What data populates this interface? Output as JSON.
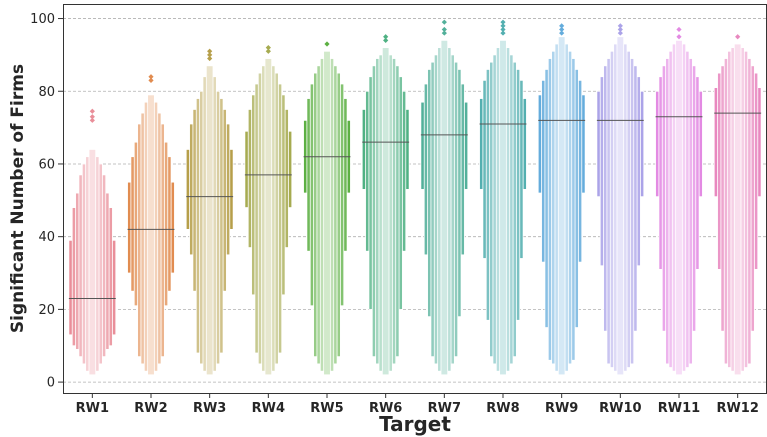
{
  "chart_data": {
    "type": "boxen",
    "xlabel": "Target",
    "ylabel": "Significant Number of Firms",
    "ylim": [
      -3,
      104
    ],
    "yticks": [
      0,
      20,
      40,
      60,
      80,
      100
    ],
    "ytick_labels": [
      "0",
      "20",
      "40",
      "60",
      "80",
      "100"
    ],
    "grid": "horizontal-dashed",
    "categories": [
      "RW1",
      "RW2",
      "RW3",
      "RW4",
      "RW5",
      "RW6",
      "RW7",
      "RW8",
      "RW9",
      "RW10",
      "RW11",
      "RW12"
    ],
    "series": [
      {
        "category": "RW1",
        "color": "#e98e99",
        "median": 23,
        "levels": [
          [
            13,
            39
          ],
          [
            10,
            48
          ],
          [
            9,
            52
          ],
          [
            7,
            57
          ],
          [
            5,
            60
          ],
          [
            3,
            62
          ],
          [
            2,
            64
          ]
        ],
        "outliers": [
          72,
          73,
          74.5
        ]
      },
      {
        "category": "RW2",
        "color": "#e18c50",
        "median": 42,
        "levels": [
          [
            30,
            55
          ],
          [
            25,
            62
          ],
          [
            21,
            66
          ],
          [
            7,
            71
          ],
          [
            5,
            74
          ],
          [
            3,
            77
          ],
          [
            2,
            79
          ]
        ],
        "outliers": [
          83,
          84
        ]
      },
      {
        "category": "RW3",
        "color": "#b69f4a",
        "median": 51,
        "levels": [
          [
            42,
            64
          ],
          [
            35,
            71
          ],
          [
            25,
            75
          ],
          [
            8,
            78
          ],
          [
            5,
            80
          ],
          [
            3,
            84
          ],
          [
            2,
            87
          ]
        ],
        "outliers": [
          89,
          90,
          91
        ]
      },
      {
        "category": "RW4",
        "color": "#a6ab50",
        "median": 57,
        "levels": [
          [
            48,
            69
          ],
          [
            37,
            75
          ],
          [
            24,
            79
          ],
          [
            8,
            82
          ],
          [
            5,
            85
          ],
          [
            3,
            87
          ],
          [
            2,
            89
          ]
        ],
        "outliers": [
          91,
          92
        ]
      },
      {
        "category": "RW5",
        "color": "#5cb043",
        "median": 62,
        "levels": [
          [
            52,
            72
          ],
          [
            36,
            78
          ],
          [
            21,
            82
          ],
          [
            7,
            85
          ],
          [
            5,
            87
          ],
          [
            3,
            89
          ],
          [
            2,
            91
          ]
        ],
        "outliers": [
          93
        ]
      },
      {
        "category": "RW6",
        "color": "#4fb183",
        "median": 66,
        "levels": [
          [
            53,
            75
          ],
          [
            36,
            80
          ],
          [
            20,
            84
          ],
          [
            7,
            87
          ],
          [
            5,
            89
          ],
          [
            3,
            90
          ],
          [
            2,
            92
          ]
        ],
        "outliers": [
          94,
          95
        ]
      },
      {
        "category": "RW7",
        "color": "#52b09a",
        "median": 68,
        "levels": [
          [
            53,
            77
          ],
          [
            35,
            82
          ],
          [
            18,
            86
          ],
          [
            7,
            88
          ],
          [
            5,
            90
          ],
          [
            3,
            92
          ],
          [
            2,
            94
          ]
        ],
        "outliers": [
          96,
          97,
          99
        ]
      },
      {
        "category": "RW8",
        "color": "#53afb0",
        "median": 71,
        "levels": [
          [
            53,
            78
          ],
          [
            34,
            83
          ],
          [
            17,
            86
          ],
          [
            7,
            88
          ],
          [
            5,
            90
          ],
          [
            3,
            92
          ],
          [
            2,
            94
          ]
        ],
        "outliers": [
          96,
          97,
          98,
          99
        ]
      },
      {
        "category": "RW9",
        "color": "#64acdc",
        "median": 72,
        "levels": [
          [
            52,
            79
          ],
          [
            33,
            83
          ],
          [
            15,
            86
          ],
          [
            6,
            89
          ],
          [
            5,
            91
          ],
          [
            3,
            93
          ],
          [
            2,
            95
          ]
        ],
        "outliers": [
          96,
          97,
          98
        ]
      },
      {
        "category": "RW10",
        "color": "#aba3e8",
        "median": 72,
        "levels": [
          [
            51,
            80
          ],
          [
            32,
            84
          ],
          [
            14,
            87
          ],
          [
            5,
            89
          ],
          [
            4,
            91
          ],
          [
            3,
            93
          ],
          [
            2,
            95
          ]
        ],
        "outliers": [
          96,
          97,
          98
        ]
      },
      {
        "category": "RW11",
        "color": "#e38ae3",
        "median": 73,
        "levels": [
          [
            51,
            80
          ],
          [
            31,
            84
          ],
          [
            14,
            87
          ],
          [
            5,
            89
          ],
          [
            4,
            91
          ],
          [
            3,
            93
          ],
          [
            2,
            94
          ]
        ],
        "outliers": [
          95,
          97
        ]
      },
      {
        "category": "RW12",
        "color": "#e888bf",
        "median": 74,
        "levels": [
          [
            51,
            81
          ],
          [
            31,
            85
          ],
          [
            14,
            87
          ],
          [
            5,
            89
          ],
          [
            4,
            91
          ],
          [
            3,
            92
          ],
          [
            2,
            93
          ]
        ],
        "outliers": [
          95
        ]
      }
    ]
  }
}
